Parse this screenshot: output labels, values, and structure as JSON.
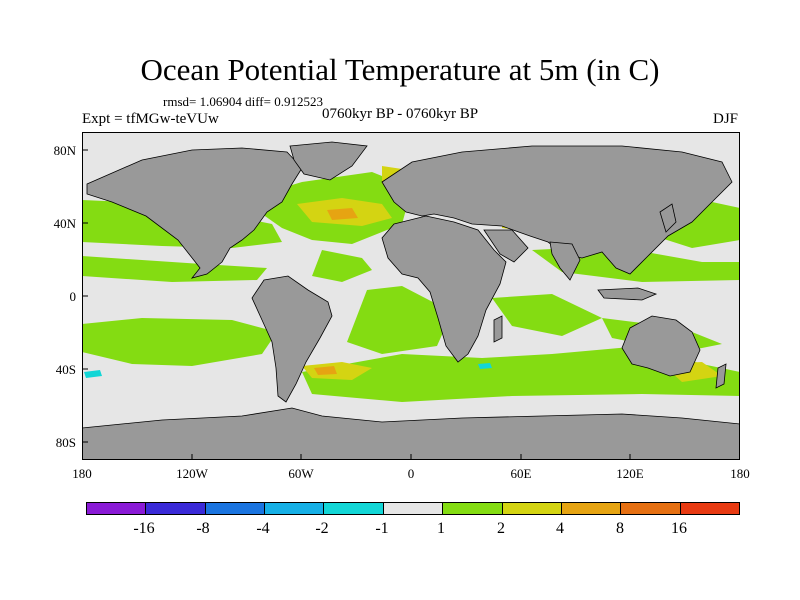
{
  "title": "Ocean Potential Temperature at 5m (in C)",
  "stats": "rmsd= 1.06904 diff= 0.912523",
  "experiment": "Expt = tfMGw-teVUw",
  "period": "0760kyr BP - 0760kyr BP",
  "season": "DJF",
  "map": {
    "y_ticks": [
      "80N",
      "40N",
      "0",
      "40S",
      "80S"
    ],
    "x_ticks": [
      "180",
      "120W",
      "60W",
      "0",
      "60E",
      "120E",
      "180"
    ],
    "land_color": "#999999",
    "ocean_color": "#e6e6e6"
  },
  "colorbar": {
    "colors": [
      "#8a1ad6",
      "#3a2ad8",
      "#1a74e0",
      "#16b0e6",
      "#12d6d6",
      "#e6e6e6",
      "#84dc12",
      "#d4d412",
      "#e6a412",
      "#e67012",
      "#e83a12"
    ],
    "labels": [
      "-16",
      "-8",
      "-4",
      "-2",
      "-1",
      "1",
      "2",
      "4",
      "8",
      "16"
    ]
  }
}
